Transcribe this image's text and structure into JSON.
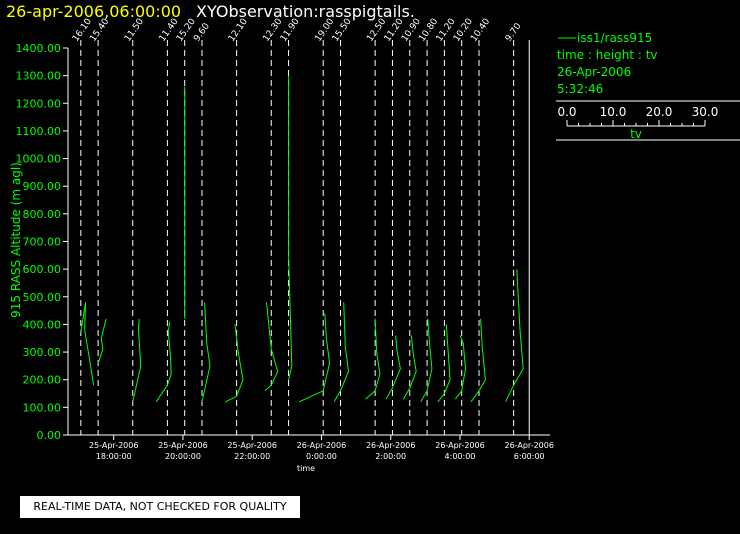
{
  "header": {
    "datetime": "26-apr-2006,06:00:00",
    "title": "XYObservation:rasspigtails."
  },
  "legend": {
    "series_label": "iss1/rass915",
    "axes_label": "time : height : tv",
    "date": "26-Apr-2006",
    "time": "5:32:46",
    "scale_ticks": [
      "0.0",
      "10.0",
      "20.0",
      "30.0"
    ],
    "scale_label": "tv"
  },
  "notice": "REAL-TIME DATA, NOT CHECKED FOR QUALITY",
  "colors": {
    "data": "#00ff00",
    "background": "#000000",
    "axes": "#ffffff",
    "title_date": "#ffff00"
  },
  "chart_data": {
    "type": "line",
    "ylabel": "915 RASS Altitude (m agl)",
    "xlabel": "time",
    "ylim": [
      0,
      1400
    ],
    "xlim_hours": [
      16.68,
      30.6
    ],
    "yticks": [
      "0.00",
      "100.00",
      "200.00",
      "300.00",
      "400.00",
      "500.00",
      "600.00",
      "700.00",
      "800.00",
      "900.00",
      "1000.00",
      "1100.00",
      "1200.00",
      "1300.00",
      "1400.00"
    ],
    "xticks": [
      {
        "hour": 18,
        "date": "25-Apr-2006",
        "time": "18:00:00"
      },
      {
        "hour": 20,
        "date": "25-Apr-2006",
        "time": "20:00:00"
      },
      {
        "hour": 22,
        "date": "25-Apr-2006",
        "time": "22:00:00"
      },
      {
        "hour": 24,
        "date": "26-Apr-2006",
        "time": "0:00:00"
      },
      {
        "hour": 26,
        "date": "26-Apr-2006",
        "time": "2:00:00"
      },
      {
        "hour": 28,
        "date": "26-Apr-2006",
        "time": "4:00:00"
      },
      {
        "hour": 30,
        "date": "26-Apr-2006",
        "time": "6:00:00"
      }
    ],
    "profiles": [
      {
        "hour": 17.05,
        "base_label": "16.10",
        "points": [
          [
            0,
            370
          ],
          [
            1.5,
            480
          ],
          [
            1.2,
            380
          ],
          [
            2.5,
            290
          ],
          [
            4.0,
            180
          ]
        ]
      },
      {
        "hour": 17.55,
        "base_label": "15.40",
        "points": [
          [
            0,
            260
          ],
          [
            1.5,
            310
          ],
          [
            1.0,
            350
          ],
          [
            2.5,
            420
          ]
        ]
      },
      {
        "hour": 18.55,
        "base_label": "11.50",
        "points": [
          [
            0,
            120
          ],
          [
            2.5,
            250
          ],
          [
            1.8,
            380
          ],
          [
            2.0,
            420
          ]
        ]
      },
      {
        "hour": 19.55,
        "base_label": "11.40",
        "points": [
          [
            -3.5,
            120
          ],
          [
            0,
            180
          ],
          [
            1.2,
            220
          ],
          [
            1.0,
            280
          ],
          [
            0.3,
            370
          ],
          [
            0.7,
            410
          ]
        ]
      },
      {
        "hour": 20.05,
        "base_label": "15.20",
        "points": [
          [
            0,
            420
          ],
          [
            0,
            720
          ],
          [
            0,
            760
          ],
          [
            0,
            1000
          ],
          [
            0,
            1050
          ],
          [
            0,
            1260
          ]
        ]
      },
      {
        "hour": 20.55,
        "base_label": "9.60",
        "points": [
          [
            0,
            120
          ],
          [
            2.5,
            250
          ],
          [
            1.5,
            330
          ],
          [
            0.8,
            480
          ]
        ]
      },
      {
        "hour": 21.55,
        "base_label": "12.10",
        "points": [
          [
            -3.5,
            120
          ],
          [
            0,
            140
          ],
          [
            2.0,
            200
          ],
          [
            0.5,
            300
          ],
          [
            -0.5,
            400
          ]
        ]
      },
      {
        "hour": 22.55,
        "base_label": "12.30",
        "points": [
          [
            -2.0,
            160
          ],
          [
            0,
            180
          ],
          [
            2.0,
            230
          ],
          [
            0,
            310
          ],
          [
            -1.5,
            480
          ]
        ]
      },
      {
        "hour": 23.05,
        "base_label": "11.90",
        "points": [
          [
            0,
            200
          ],
          [
            1.0,
            250
          ],
          [
            0,
            650
          ],
          [
            0,
            1300
          ]
        ]
      },
      {
        "hour": 24.05,
        "base_label": "19.00",
        "points": [
          [
            -7.5,
            120
          ],
          [
            0,
            160
          ],
          [
            2.0,
            260
          ],
          [
            1.0,
            350
          ],
          [
            0.5,
            440
          ]
        ]
      },
      {
        "hour": 24.55,
        "base_label": "15.50",
        "points": [
          [
            -2.0,
            120
          ],
          [
            0,
            160
          ],
          [
            2.5,
            230
          ],
          [
            1.5,
            320
          ],
          [
            1.0,
            480
          ]
        ]
      },
      {
        "hour": 25.55,
        "base_label": "12.50",
        "points": [
          [
            -3.0,
            130
          ],
          [
            0,
            160
          ],
          [
            1.5,
            220
          ],
          [
            0.5,
            300
          ],
          [
            0,
            420
          ]
        ]
      },
      {
        "hour": 26.05,
        "base_label": "11.20",
        "points": [
          [
            -2.0,
            130
          ],
          [
            0,
            170
          ],
          [
            2.5,
            240
          ],
          [
            1.5,
            300
          ],
          [
            1.0,
            360
          ]
        ]
      },
      {
        "hour": 26.55,
        "base_label": "10.90",
        "points": [
          [
            -2.0,
            130
          ],
          [
            0,
            170
          ],
          [
            2.0,
            230
          ],
          [
            1.0,
            300
          ],
          [
            0.5,
            360
          ]
        ]
      },
      {
        "hour": 27.05,
        "base_label": "10.80",
        "points": [
          [
            -2.0,
            120
          ],
          [
            0,
            160
          ],
          [
            1.5,
            240
          ],
          [
            0.8,
            330
          ],
          [
            0.2,
            420
          ]
        ]
      },
      {
        "hour": 27.55,
        "base_label": "11.20",
        "points": [
          [
            -2.0,
            120
          ],
          [
            0,
            150
          ],
          [
            1.8,
            200
          ],
          [
            1.2,
            300
          ],
          [
            0.6,
            400
          ]
        ]
      },
      {
        "hour": 28.05,
        "base_label": "10.20",
        "points": [
          [
            -2.0,
            130
          ],
          [
            0,
            160
          ],
          [
            1.2,
            240
          ],
          [
            0.5,
            330
          ],
          [
            -0.5,
            360
          ]
        ]
      },
      {
        "hour": 28.55,
        "base_label": "10.40",
        "points": [
          [
            -2.5,
            120
          ],
          [
            0,
            160
          ],
          [
            2.0,
            200
          ],
          [
            1.0,
            320
          ],
          [
            0.5,
            420
          ]
        ]
      },
      {
        "hour": 29.55,
        "base_label": "9.70",
        "points": [
          [
            -2.5,
            120
          ],
          [
            0,
            180
          ],
          [
            3.0,
            240
          ],
          [
            2.0,
            380
          ],
          [
            1.0,
            600
          ]
        ]
      }
    ],
    "profile_scale_note": "tv offset per profile",
    "legend_scale": [
      0,
      30
    ]
  }
}
